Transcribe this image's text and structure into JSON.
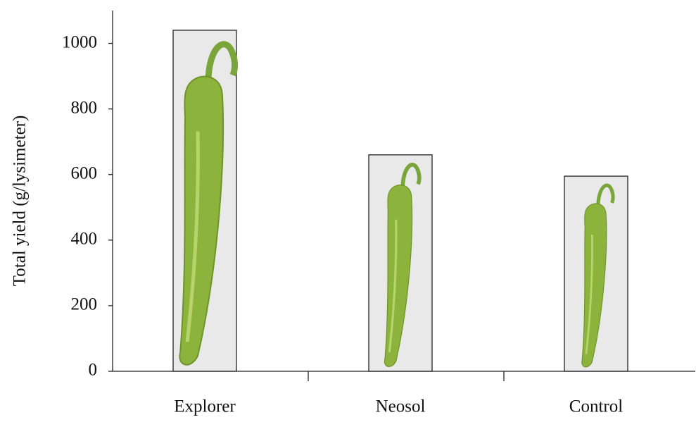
{
  "chart_data": {
    "type": "bar",
    "y_label": "Total yield  (g/lysimeter)",
    "categories": [
      "Explorer",
      "Neosol",
      "Control"
    ],
    "values": [
      1040,
      660,
      595
    ],
    "color": "#e9e9ea",
    "ylim": [
      0,
      1100
    ],
    "yticks": [
      0,
      200,
      400,
      600,
      800,
      1000
    ]
  }
}
